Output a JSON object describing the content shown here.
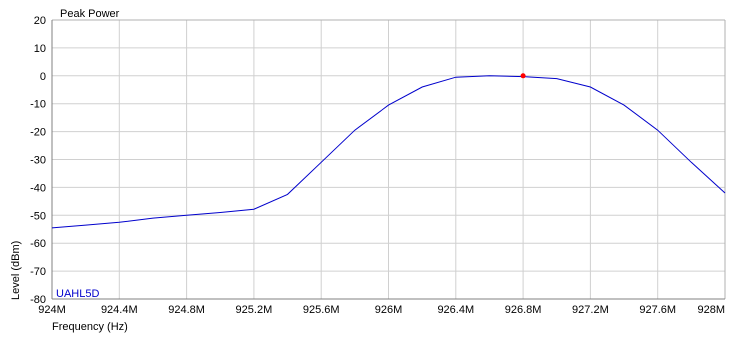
{
  "chart_data": {
    "type": "line",
    "title": "Peak Power",
    "xlabel": "Frequency (Hz)",
    "ylabel": "Level (dBm)",
    "x_range": [
      924,
      928
    ],
    "ylim": [
      -80,
      20
    ],
    "grid": true,
    "x_tick_labels": [
      "924M",
      "924.4M",
      "924.8M",
      "925.2M",
      "925.6M",
      "926M",
      "926.4M",
      "926.8M",
      "927.2M",
      "927.6M",
      "928M"
    ],
    "y_tick_labels": [
      "20",
      "10",
      "0",
      "-10",
      "-20",
      "-30",
      "-40",
      "-50",
      "-60",
      "-70",
      "-80"
    ],
    "series": [
      {
        "name": "UAHL5D",
        "color": "#0000cc",
        "x": [
          924.0,
          924.2,
          924.4,
          924.6,
          924.8,
          925.0,
          925.2,
          925.4,
          925.6,
          925.8,
          926.0,
          926.2,
          926.4,
          926.6,
          926.8,
          927.0,
          927.2,
          927.4,
          927.6,
          927.8,
          928.0
        ],
        "y": [
          -54.5,
          -53.5,
          -52.5,
          -51,
          -50,
          -49,
          -47.8,
          -42.5,
          -31,
          -19.5,
          -10.5,
          -4,
          -0.5,
          0,
          -0.3,
          -1,
          -4,
          -10.5,
          -19.5,
          -31,
          -42
        ]
      }
    ],
    "marker": {
      "x": 926.8,
      "y": 0,
      "color": "#ff0000"
    }
  }
}
